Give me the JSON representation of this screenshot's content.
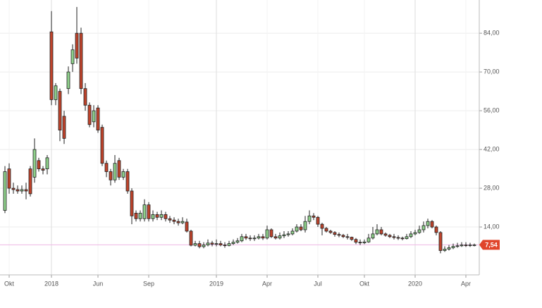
{
  "chart_data": {
    "type": "candlestick",
    "categories": [
      null,
      "Okt",
      null,
      null,
      null,
      null,
      null,
      null,
      null,
      null,
      null,
      "2018",
      null,
      null,
      null,
      null,
      null,
      null,
      null,
      null,
      null,
      null,
      "Jun",
      null,
      null,
      null,
      null,
      null,
      null,
      null,
      null,
      null,
      null,
      null,
      "Sep",
      null,
      null,
      null,
      null,
      null,
      null,
      null,
      null,
      null,
      null,
      null,
      null,
      null,
      null,
      null,
      "2019",
      null,
      null,
      null,
      null,
      null,
      null,
      null,
      null,
      null,
      null,
      null,
      "Apr",
      null,
      null,
      null,
      null,
      null,
      null,
      null,
      null,
      null,
      null,
      null,
      "Jul",
      null,
      null,
      null,
      null,
      null,
      null,
      null,
      null,
      null,
      null,
      "Okt",
      null,
      null,
      null,
      null,
      null,
      null,
      null,
      null,
      null,
      null,
      null,
      "2020",
      null,
      null,
      null,
      null,
      null,
      null,
      null,
      null,
      null,
      null,
      null,
      "Apr",
      null,
      null
    ],
    "open": [
      20,
      35,
      28,
      27.5,
      27,
      27.5,
      35,
      32,
      38,
      35,
      35,
      84.5,
      60,
      63,
      54,
      64,
      73,
      84,
      84,
      64,
      58,
      52,
      57,
      50,
      37,
      34,
      31,
      38,
      32,
      34,
      27,
      19,
      17,
      17,
      22,
      17,
      18.5,
      17.5,
      18.5,
      17,
      16.5,
      16,
      15.5,
      15.8,
      12.5,
      7.4,
      8,
      6.9,
      7.5,
      8.2,
      7.8,
      8,
      7.5,
      7.3,
      8,
      8.5,
      9,
      10.5,
      10,
      9.8,
      10,
      10.5,
      10,
      13,
      10.5,
      10,
      10.8,
      11.2,
      11.5,
      12.5,
      14,
      13,
      16,
      18,
      17.5,
      15,
      13.5,
      12.5,
      12,
      11.3,
      11,
      10.5,
      10.3,
      9.5,
      8.5,
      8.3,
      8.6,
      10,
      11.5,
      13,
      11.5,
      11,
      10.5,
      10.2,
      10,
      9.8,
      10.5,
      11.5,
      12,
      13,
      14.5,
      16,
      14,
      12,
      5.5,
      6,
      6.5,
      7,
      7.2,
      7.5,
      7.3,
      7.5
    ],
    "high": [
      36,
      37,
      30,
      29,
      29,
      30,
      36,
      46,
      39,
      36,
      40,
      92,
      66,
      64,
      56,
      72,
      80,
      93.5,
      86,
      66,
      59,
      58,
      58,
      51,
      38,
      35,
      40,
      39,
      35,
      35,
      28,
      20,
      20,
      24,
      23,
      20,
      19.5,
      20,
      19.5,
      18,
      17.5,
      17,
      17.5,
      17,
      13,
      9,
      9,
      8.5,
      9.5,
      9,
      9.5,
      9,
      8.5,
      9,
      9.5,
      10,
      11.5,
      11.5,
      11,
      11,
      11.5,
      11.5,
      14.5,
      13.5,
      11.5,
      12,
      12.5,
      12.5,
      13.5,
      15,
      15,
      18,
      20,
      19,
      18,
      15.5,
      14,
      13,
      12.5,
      12,
      11.5,
      11.5,
      10.5,
      10,
      9.5,
      9.5,
      11.5,
      14,
      15,
      14,
      12,
      11.5,
      11.5,
      11,
      10.5,
      11.5,
      12.5,
      13,
      14.5,
      16,
      17,
      16.5,
      14.5,
      12.5,
      7,
      7.5,
      8,
      8.3,
      8.5,
      8.5,
      8.3,
      8
    ],
    "low": [
      19,
      26,
      26,
      26,
      26,
      24,
      25,
      30,
      34,
      33,
      33,
      58,
      58,
      45,
      44,
      62,
      70,
      73,
      62,
      56,
      50,
      50,
      48,
      36,
      32,
      29,
      30,
      31,
      31,
      26,
      15,
      16,
      16,
      16,
      16,
      16,
      16.5,
      16.5,
      16,
      15.5,
      15,
      14.5,
      15,
      12,
      7,
      7,
      6.3,
      6.3,
      7,
      7,
      7,
      7,
      6.5,
      7,
      7.5,
      8,
      8.5,
      9.3,
      9,
      9,
      9.5,
      9.3,
      9.5,
      10,
      9.5,
      9.5,
      10,
      10.5,
      11,
      12,
      12.5,
      12,
      15,
      16.5,
      14,
      11,
      12,
      11.5,
      10.5,
      10.3,
      10,
      9.5,
      9,
      7.8,
      7.5,
      7.8,
      8.3,
      9.5,
      11,
      11,
      10.5,
      10,
      9.5,
      9.3,
      9.2,
      9.5,
      10,
      11,
      11.5,
      12,
      13.5,
      13.5,
      11,
      4.5,
      5,
      5.5,
      6,
      6.5,
      6.8,
      6.8,
      6.8,
      7
    ],
    "close": [
      34,
      28,
      27.5,
      27,
      27.5,
      27,
      26,
      42,
      35,
      34.5,
      39,
      60,
      65,
      49,
      46,
      70,
      78,
      75,
      64,
      58,
      51,
      56,
      49,
      37,
      34,
      31,
      37,
      32,
      34,
      27,
      18,
      17,
      19,
      22,
      17,
      18.5,
      17.5,
      18.5,
      17,
      16.5,
      16,
      15.5,
      16,
      12.5,
      7.4,
      8,
      6.9,
      7.5,
      8.2,
      7.8,
      8,
      7.5,
      7.3,
      8,
      8.5,
      9,
      10.5,
      10,
      9.8,
      10,
      10.5,
      10,
      13,
      10.5,
      10,
      10.8,
      11.2,
      11.5,
      12.5,
      14,
      13,
      16,
      18,
      17.5,
      15,
      13.5,
      12.5,
      12,
      11.3,
      11,
      10.5,
      10.3,
      9.5,
      8.5,
      8.3,
      8.6,
      10,
      11.5,
      13,
      11.5,
      11,
      10.5,
      10.2,
      10,
      9.8,
      10.5,
      11.5,
      12,
      13,
      14.5,
      16,
      14,
      12,
      5.5,
      6,
      6.5,
      7,
      7.2,
      7.5,
      7.3,
      7.5,
      7.54
    ],
    "up_color": "#8ed08a",
    "down_color": "#c0432b",
    "last_price": {
      "value": 7.54,
      "label": "7,54"
    },
    "last_price_color": "#e0452b",
    "price_line_color": "#eeb6e4",
    "ylim": [
      -3.3,
      96
    ],
    "yticks": [
      {
        "value": 14,
        "label": "14,00"
      },
      {
        "value": 28,
        "label": "28,00"
      },
      {
        "value": 42,
        "label": "42,00"
      },
      {
        "value": 56,
        "label": "56,00"
      },
      {
        "value": 70,
        "label": "70,00"
      },
      {
        "value": 84,
        "label": "84,00"
      }
    ],
    "grid": true
  }
}
